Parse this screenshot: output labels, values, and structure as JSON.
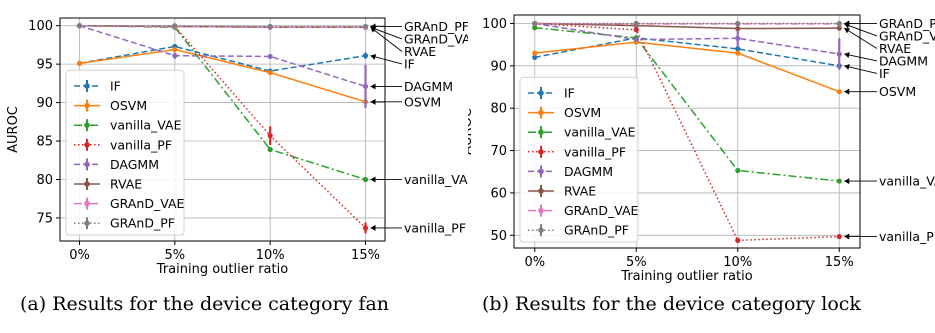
{
  "chart_data": [
    {
      "type": "line",
      "caption": "(a) Results for the device category fan",
      "xlabel": "Training outlier ratio",
      "ylabel": "AUROC",
      "categories": [
        "0%",
        "5%",
        "10%",
        "15%"
      ],
      "ylim": [
        72,
        101
      ],
      "yticks": [
        75,
        80,
        85,
        90,
        95,
        100
      ],
      "grid": true,
      "legend_position": "lower-left",
      "series": [
        {
          "name": "IF",
          "values": [
            95.1,
            97.3,
            94.1,
            96.1
          ],
          "err": [
            0,
            0,
            0,
            0.4
          ],
          "color": "#1f77b4",
          "dash": "dashed"
        },
        {
          "name": "OSVM",
          "values": [
            95.1,
            96.9,
            93.9,
            90.1
          ],
          "err": [
            0,
            0,
            0,
            0
          ],
          "color": "#ff7f0e",
          "dash": "solid"
        },
        {
          "name": "vanilla_VAE",
          "values": [
            100.0,
            99.8,
            83.9,
            80.0
          ],
          "err": [
            0,
            0,
            0,
            0
          ],
          "color": "#2ca02c",
          "dash": "dashdot"
        },
        {
          "name": "vanilla_PF",
          "values": [
            100.0,
            99.9,
            85.7,
            73.7
          ],
          "err": [
            0,
            0,
            1.2,
            0.7
          ],
          "color": "#d62728",
          "dash": "dotted"
        },
        {
          "name": "DAGMM",
          "values": [
            100.0,
            96.1,
            96.0,
            92.1
          ],
          "err": [
            0,
            0.4,
            0,
            2.8
          ],
          "color": "#9467bd",
          "dash": "dashed"
        },
        {
          "name": "RVAE",
          "values": [
            100.0,
            99.9,
            99.8,
            99.8
          ],
          "err": [
            0,
            0,
            0,
            0
          ],
          "color": "#8c564b",
          "dash": "solid"
        },
        {
          "name": "GRAnD_VAE",
          "values": [
            100.0,
            99.9,
            99.8,
            99.8
          ],
          "err": [
            0,
            0,
            0,
            0
          ],
          "color": "#e377c2",
          "dash": "dashdot"
        },
        {
          "name": "GRAnD_PF",
          "values": [
            100.0,
            100.0,
            99.9,
            99.9
          ],
          "err": [
            0,
            0,
            0,
            0
          ],
          "color": "#7f7f7f",
          "dash": "dotted"
        }
      ],
      "end_labels": [
        {
          "text": "GRAnD_PF",
          "value": 99.9
        },
        {
          "text": "GRAnD_VAE",
          "value": 99.8
        },
        {
          "text": "RVAE",
          "value": 99.8
        },
        {
          "text": "IF",
          "value": 96.1
        },
        {
          "text": "DAGMM",
          "value": 92.1
        },
        {
          "text": "OSVM",
          "value": 90.1
        },
        {
          "text": "vanilla_VAE",
          "value": 80.0
        },
        {
          "text": "vanilla_PF",
          "value": 73.7
        }
      ]
    },
    {
      "type": "line",
      "caption": "(b) Results for the device category lock",
      "xlabel": "Training outlier ratio",
      "ylabel": "AUROC",
      "categories": [
        "0%",
        "5%",
        "10%",
        "15%"
      ],
      "ylim": [
        47,
        102
      ],
      "yticks": [
        50,
        60,
        70,
        80,
        90,
        100
      ],
      "grid": true,
      "legend_position": "lower-left",
      "series": [
        {
          "name": "IF",
          "values": [
            92.0,
            96.6,
            94.0,
            90.0
          ],
          "err": [
            0,
            0,
            0,
            0.6
          ],
          "color": "#1f77b4",
          "dash": "dashed"
        },
        {
          "name": "OSVM",
          "values": [
            93.0,
            95.6,
            93.0,
            83.9
          ],
          "err": [
            0,
            0,
            0,
            0
          ],
          "color": "#ff7f0e",
          "dash": "solid"
        },
        {
          "name": "vanilla_VAE",
          "values": [
            99.0,
            96.6,
            65.3,
            62.8
          ],
          "err": [
            0,
            0,
            0,
            0
          ],
          "color": "#2ca02c",
          "dash": "dashdot"
        },
        {
          "name": "vanilla_PF",
          "values": [
            100.0,
            98.5,
            48.8,
            49.7
          ],
          "err": [
            0,
            0,
            0,
            0
          ],
          "color": "#d62728",
          "dash": "dotted"
        },
        {
          "name": "DAGMM",
          "values": [
            100.0,
            96.2,
            96.5,
            92.8
          ],
          "err": [
            0,
            0,
            2.0,
            3.7
          ],
          "color": "#9467bd",
          "dash": "dashed"
        },
        {
          "name": "RVAE",
          "values": [
            100.0,
            99.5,
            98.8,
            98.9
          ],
          "err": [
            0,
            0,
            0,
            0
          ],
          "color": "#8c564b",
          "dash": "solid"
        },
        {
          "name": "GRAnD_VAE",
          "values": [
            100.0,
            99.9,
            99.9,
            99.9
          ],
          "err": [
            0,
            0,
            0,
            0
          ],
          "color": "#e377c2",
          "dash": "dashdot"
        },
        {
          "name": "GRAnD_PF",
          "values": [
            100.0,
            100.0,
            100.0,
            100.0
          ],
          "err": [
            0,
            0,
            0,
            0
          ],
          "color": "#7f7f7f",
          "dash": "dotted"
        }
      ],
      "end_labels": [
        {
          "text": "GRAnD_PF",
          "value": 100.0
        },
        {
          "text": "GRAnD_VAE",
          "value": 99.9
        },
        {
          "text": "RVAE",
          "value": 98.9
        },
        {
          "text": "DAGMM",
          "value": 92.8
        },
        {
          "text": "IF",
          "value": 90.0
        },
        {
          "text": "OSVM",
          "value": 83.9
        },
        {
          "text": "vanilla_VAE",
          "value": 62.8
        },
        {
          "text": "vanilla_PF",
          "value": 49.7
        }
      ]
    }
  ]
}
